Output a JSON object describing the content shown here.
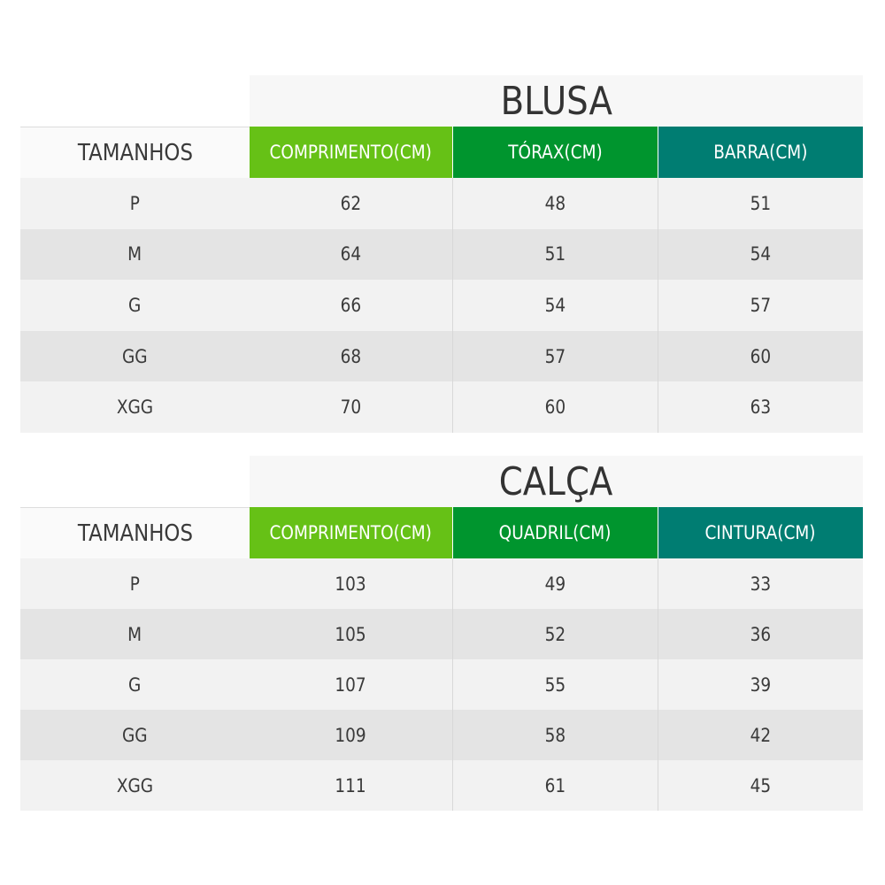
{
  "tables": [
    {
      "title": "BLUSA",
      "headers": [
        "TAMANHOS",
        "COMPRIMENTO(CM)",
        "TÓRAX(CM)",
        "BARRA(CM)"
      ],
      "rows": [
        [
          "P",
          "62",
          "48",
          "51"
        ],
        [
          "M",
          "64",
          "51",
          "54"
        ],
        [
          "G",
          "66",
          "54",
          "57"
        ],
        [
          "GG",
          "68",
          "57",
          "60"
        ],
        [
          "XGG",
          "70",
          "60",
          "63"
        ]
      ]
    },
    {
      "title": "CALÇA",
      "headers": [
        "TAMANHOS",
        "COMPRIMENTO(CM)",
        "QUADRIL(CM)",
        "CINTURA(CM)"
      ],
      "rows": [
        [
          "P",
          "103",
          "49",
          "33"
        ],
        [
          "M",
          "105",
          "52",
          "36"
        ],
        [
          "G",
          "107",
          "55",
          "39"
        ],
        [
          "GG",
          "109",
          "58",
          "42"
        ],
        [
          "XGG",
          "111",
          "61",
          "45"
        ]
      ]
    }
  ],
  "colors": {
    "header_1": "#66c116",
    "header_2": "#00952e",
    "header_3": "#007d72",
    "row_light": "#f2f2f2",
    "row_dark": "#e4e4e4"
  }
}
